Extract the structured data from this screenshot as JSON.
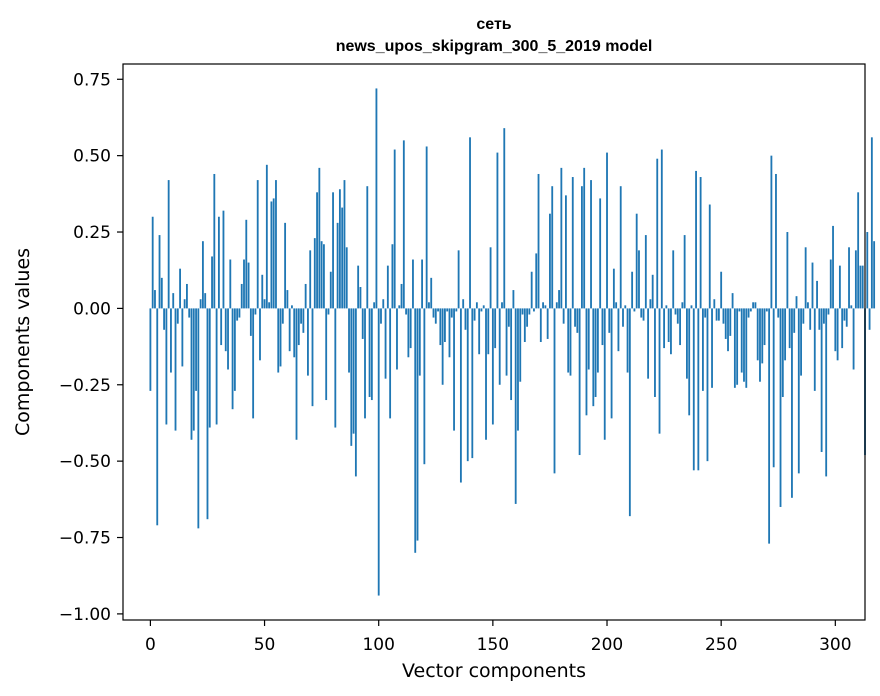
{
  "chart_data": {
    "type": "bar",
    "title": "сеть",
    "subtitle": "news_upos_skipgram_300_5_2019 model",
    "xlabel": "Vector components",
    "ylabel": "Components values",
    "xlim": [
      -12,
      313
    ],
    "ylim": [
      -1.02,
      0.8
    ],
    "xticks": [
      0,
      50,
      100,
      150,
      200,
      250,
      300
    ],
    "yticks": [
      0.75,
      0.5,
      0.25,
      0.0,
      -0.25,
      -0.5,
      -0.75,
      -1.0
    ],
    "ytick_labels": [
      "0.75",
      "0.50",
      "0.25",
      "0.00",
      "−0.25",
      "−0.50",
      "−0.75",
      "−1.00"
    ],
    "bar_color": "#1f77b4",
    "values": [
      -0.27,
      0.3,
      0.06,
      -0.71,
      0.24,
      0.1,
      -0.07,
      -0.38,
      0.42,
      -0.21,
      0.05,
      -0.4,
      -0.05,
      0.13,
      -0.19,
      0.03,
      0.08,
      -0.03,
      -0.43,
      -0.4,
      -0.27,
      -0.72,
      0.03,
      0.22,
      0.05,
      -0.69,
      -0.39,
      0.17,
      0.44,
      -0.38,
      0.3,
      -0.12,
      0.32,
      -0.14,
      -0.2,
      0.16,
      -0.33,
      -0.27,
      -0.04,
      -0.03,
      0.08,
      0.16,
      0.29,
      0.15,
      -0.09,
      -0.36,
      -0.02,
      0.42,
      -0.17,
      0.11,
      0.03,
      0.47,
      0.02,
      0.35,
      0.36,
      0.42,
      -0.21,
      -0.19,
      -0.05,
      0.28,
      0.06,
      -0.14,
      0.01,
      -0.16,
      -0.43,
      -0.12,
      -0.05,
      -0.08,
      0.08,
      -0.22,
      0.19,
      -0.32,
      0.23,
      0.38,
      0.46,
      0.22,
      0.21,
      -0.3,
      -0.02,
      0.12,
      0.38,
      -0.39,
      0.28,
      0.39,
      0.33,
      0.42,
      0.2,
      -0.21,
      -0.45,
      -0.41,
      -0.55,
      0.14,
      0.07,
      -0.1,
      -0.36,
      0.4,
      -0.29,
      -0.3,
      0.02,
      0.72,
      -0.94,
      -0.05,
      0.03,
      -0.23,
      0.14,
      -0.36,
      0.21,
      0.52,
      -0.2,
      0.01,
      0.08,
      0.55,
      -0.02,
      -0.16,
      -0.13,
      0.16,
      -0.8,
      -0.76,
      -0.22,
      0.16,
      -0.51,
      0.53,
      0.02,
      0.1,
      -0.03,
      -0.05,
      -0.01,
      -0.12,
      -0.25,
      -0.11,
      -0.01,
      -0.16,
      -0.03,
      -0.4,
      -0.01,
      0.19,
      -0.57,
      0.03,
      -0.07,
      -0.5,
      0.56,
      -0.49,
      -0.04,
      0.02,
      -0.15,
      -0.01,
      0.01,
      -0.43,
      -0.15,
      0.2,
      -0.38,
      -0.13,
      0.51,
      -0.25,
      0.02,
      0.59,
      -0.22,
      -0.06,
      -0.3,
      0.06,
      -0.64,
      -0.4,
      -0.24,
      -0.02,
      -0.11,
      -0.06,
      -0.02,
      0.12,
      -0.01,
      0.18,
      0.44,
      -0.11,
      0.02,
      0.01,
      -0.1,
      0.31,
      0.4,
      -0.54,
      0.02,
      0.06,
      0.46,
      -0.05,
      0.37,
      -0.21,
      -0.22,
      0.43,
      -0.06,
      -0.08,
      -0.48,
      0.4,
      0.46,
      -0.35,
      -0.2,
      0.42,
      -0.32,
      -0.29,
      -0.21,
      0.36,
      -0.12,
      -0.43,
      0.51,
      -0.08,
      -0.36,
      0.13,
      0.02,
      -0.14,
      0.4,
      -0.06,
      0.01,
      -0.21,
      -0.68,
      0.12,
      -0.01,
      0.31,
      0.19,
      -0.03,
      -0.04,
      0.24,
      -0.23,
      0.03,
      0.11,
      -0.29,
      0.49,
      -0.41,
      0.52,
      -0.13,
      0.01,
      -0.11,
      -0.15,
      0.19,
      -0.02,
      -0.05,
      -0.12,
      0.02,
      0.24,
      -0.23,
      -0.35,
      0.01,
      -0.53,
      0.45,
      -0.53,
      0.43,
      -0.27,
      -0.03,
      -0.5,
      0.34,
      -0.26,
      0.03,
      -0.04,
      -0.04,
      0.12,
      -0.05,
      -0.1,
      -0.14,
      -0.09,
      0.05,
      -0.26,
      -0.25,
      -0.01,
      -0.21,
      -0.24,
      -0.26,
      -0.03,
      -0.01,
      0.02,
      0.02,
      -0.17,
      -0.24,
      -0.18,
      -0.12,
      -0.01,
      -0.77,
      0.5,
      -0.52,
      0.44,
      -0.03,
      -0.65,
      -0.29,
      -0.17,
      0.25,
      -0.13,
      -0.62,
      -0.08,
      0.04,
      -0.54,
      -0.22,
      -0.05,
      0.2,
      0.02,
      -0.07,
      0.15,
      -0.27,
      0.09,
      -0.07,
      -0.47,
      -0.05,
      -0.55,
      -0.02,
      0.16,
      0.27,
      -0.14,
      -0.17,
      0.14,
      -0.13,
      -0.04,
      -0.06,
      0.2,
      0.01,
      -0.2,
      0.19,
      0.38,
      0.14,
      0.14,
      -0.48,
      0.25,
      -0.07,
      0.56,
      0.22
    ]
  }
}
